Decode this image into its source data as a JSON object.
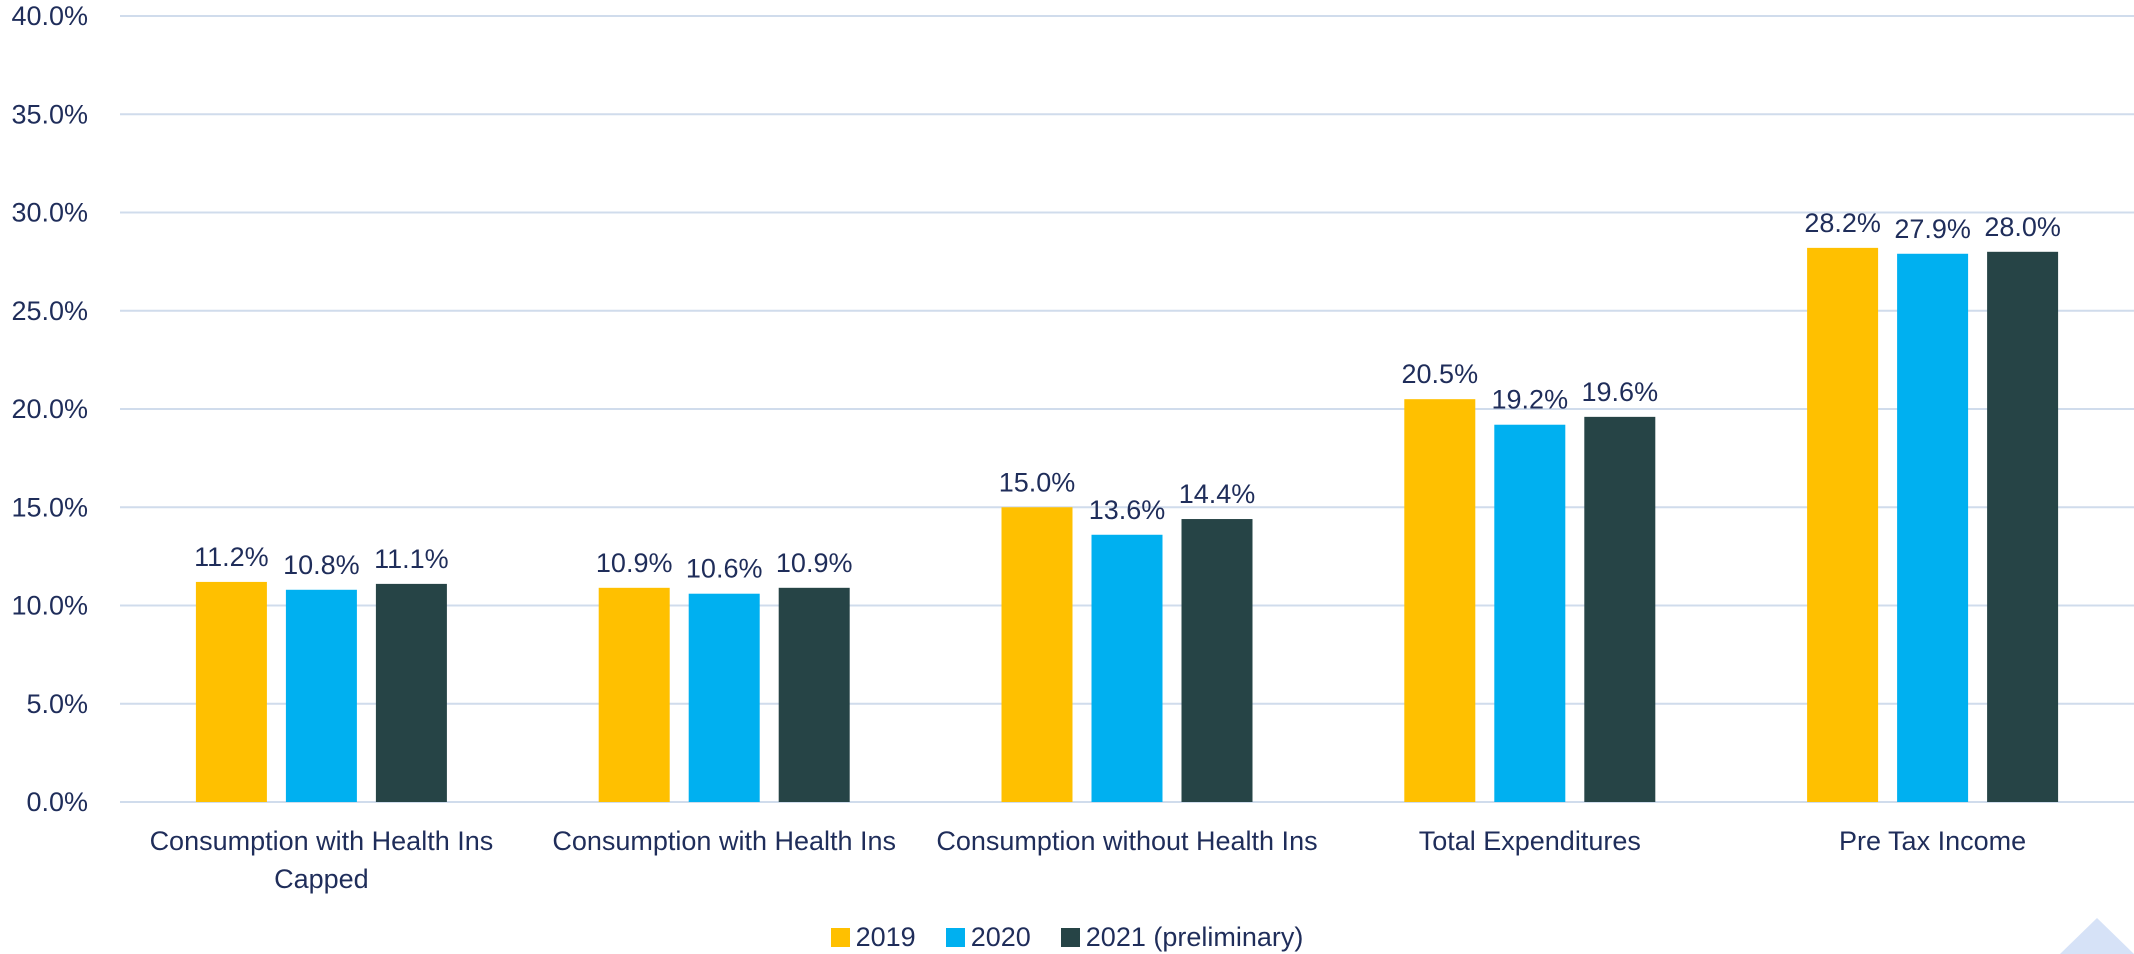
{
  "chart_data": {
    "type": "bar",
    "categories": [
      "Consumption with Health Ins Capped",
      "Consumption with Health Ins",
      "Consumption without Health Ins",
      "Total Expenditures",
      "Pre Tax Income"
    ],
    "series": [
      {
        "name": "2019",
        "color": "#FFC000",
        "values": [
          11.2,
          10.9,
          15.0,
          20.5,
          28.2
        ],
        "value_labels": [
          "11.2%",
          "10.9%",
          "15.0%",
          "20.5%",
          "28.2%"
        ]
      },
      {
        "name": "2020",
        "color": "#00B0F0",
        "values": [
          10.8,
          10.6,
          13.6,
          19.2,
          27.9
        ],
        "value_labels": [
          "10.8%",
          "10.6%",
          "13.6%",
          "19.2%",
          "27.9%"
        ]
      },
      {
        "name": "2021 (preliminary)",
        "color": "#264446",
        "values": [
          11.1,
          10.9,
          14.4,
          19.6,
          28.0
        ],
        "value_labels": [
          "11.1%",
          "10.9%",
          "14.4%",
          "19.6%",
          "28.0%"
        ]
      }
    ],
    "ylim": [
      0,
      40
    ],
    "yticks": [
      {
        "value": 0,
        "label": "0.0%"
      },
      {
        "value": 5,
        "label": "5.0%"
      },
      {
        "value": 10,
        "label": "10.0%"
      },
      {
        "value": 15,
        "label": "15.0%"
      },
      {
        "value": 20,
        "label": "20.0%"
      },
      {
        "value": 25,
        "label": "25.0%"
      },
      {
        "value": 30,
        "label": "30.0%"
      },
      {
        "value": 35,
        "label": "35.0%"
      },
      {
        "value": 40,
        "label": "40.0%"
      }
    ],
    "grid": true,
    "legend": "bottom"
  }
}
